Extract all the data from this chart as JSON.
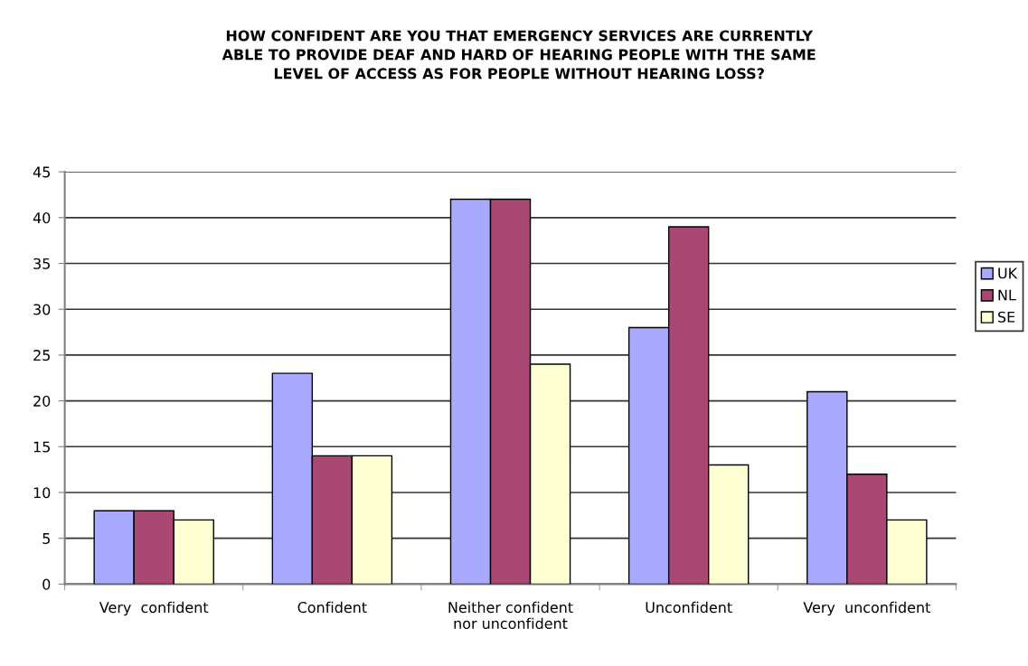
{
  "chart_data": {
    "type": "bar",
    "title": "HOW CONFIDENT ARE YOU THAT EMERGENCY SERVICES ARE CURRENTLY\nABLE TO PROVIDE DEAF AND HARD OF HEARING PEOPLE WITH THE SAME\nLEVEL OF ACCESS AS FOR PEOPLE WITHOUT HEARING LOSS?",
    "categories": [
      "Very  confident",
      "Confident",
      "Neither confident\nnor unconfident",
      "Unconfident",
      "Very  unconfident"
    ],
    "series": [
      {
        "name": "UK",
        "color": "#a9aaff",
        "values": [
          8,
          23,
          42,
          28,
          21
        ]
      },
      {
        "name": "NL",
        "color": "#a94775",
        "values": [
          8,
          14,
          42,
          39,
          12
        ]
      },
      {
        "name": "SE",
        "color": "#ffffd4",
        "values": [
          7,
          14,
          24,
          13,
          7
        ]
      }
    ],
    "ylim": [
      0,
      45
    ],
    "yticks": [
      0,
      5,
      10,
      15,
      20,
      25,
      30,
      35,
      40,
      45
    ],
    "grid": "y",
    "legend": "right"
  }
}
